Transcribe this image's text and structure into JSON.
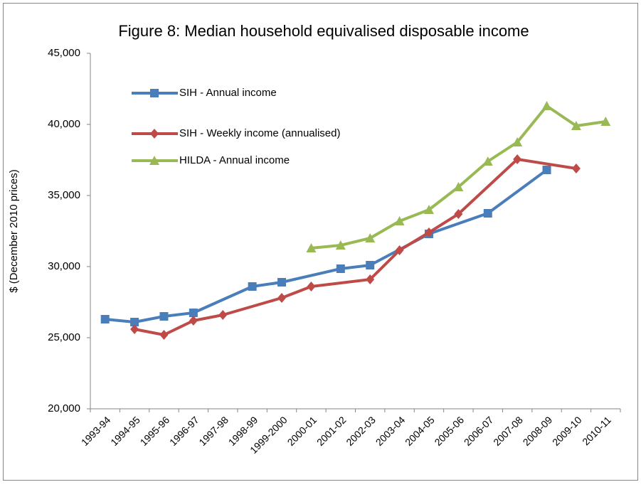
{
  "chart_data": {
    "type": "line",
    "title": "Figure 8: Median household equivalised disposable income",
    "y_label": "$ (December 2010 prices)",
    "categories": [
      "1993-94",
      "1994-95",
      "1995-96",
      "1996-97",
      "1997-98",
      "1998-99",
      "1999-2000",
      "2000-01",
      "2001-02",
      "2002-03",
      "2003-04",
      "2004-05",
      "2005-06",
      "2006-07",
      "2007-08",
      "2008-09",
      "2009-10",
      "2010-11"
    ],
    "series": [
      {
        "name": "SIH - Annual income",
        "color": "#4a7ebb",
        "marker": "square",
        "values": [
          26300,
          26100,
          26500,
          26750,
          null,
          28600,
          28900,
          null,
          29850,
          30100,
          null,
          32300,
          null,
          33750,
          null,
          36800,
          null,
          null
        ]
      },
      {
        "name": "SIH - Weekly income (annualised)",
        "color": "#be4b48",
        "marker": "diamond",
        "values": [
          null,
          25600,
          25200,
          26200,
          26600,
          null,
          27800,
          28600,
          null,
          29100,
          31150,
          32400,
          33700,
          null,
          37550,
          null,
          36900,
          null
        ]
      },
      {
        "name": "HILDA - Annual income",
        "color": "#98b954",
        "marker": "triangle",
        "values": [
          null,
          null,
          null,
          null,
          null,
          null,
          null,
          31300,
          31500,
          32000,
          33200,
          34000,
          35600,
          37400,
          38750,
          41300,
          39900,
          40200
        ]
      }
    ],
    "ylim": [
      20000,
      45000
    ],
    "yticks": [
      {
        "value": 20000,
        "label": "20,000"
      },
      {
        "value": 25000,
        "label": "25,000"
      },
      {
        "value": 30000,
        "label": "30,000"
      },
      {
        "value": 35000,
        "label": "35,000"
      },
      {
        "value": 40000,
        "label": "40,000"
      },
      {
        "value": 45000,
        "label": "45,000"
      }
    ],
    "grid": false
  }
}
